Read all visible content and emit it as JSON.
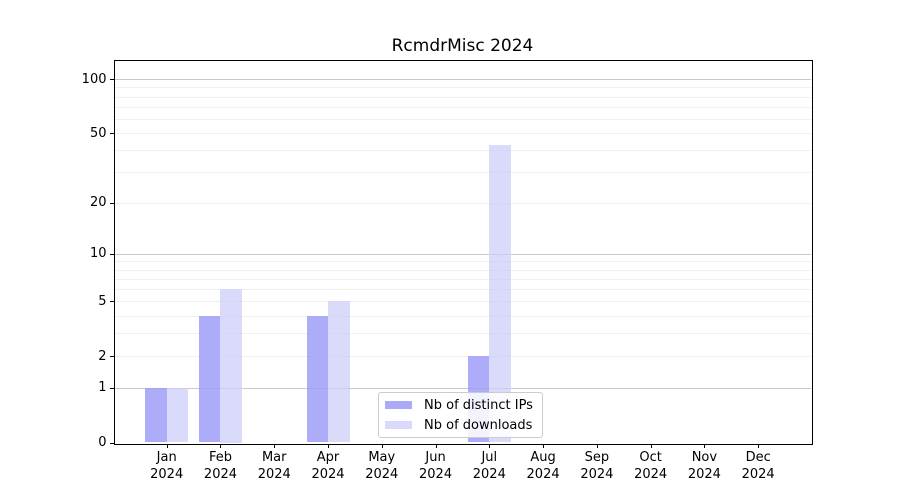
{
  "title": "RcmdrMisc 2024",
  "chart_data": {
    "type": "bar",
    "title": "RcmdrMisc 2024",
    "categories": [
      "Jan",
      "Feb",
      "Mar",
      "Apr",
      "May",
      "Jun",
      "Jul",
      "Aug",
      "Sep",
      "Oct",
      "Nov",
      "Dec"
    ],
    "year_label": "2024",
    "series": [
      {
        "name": "Nb of distinct IPs",
        "color": "rgba(158,158,248,0.85)",
        "color_hex": "#aaaaf8",
        "values": [
          1,
          4,
          0,
          4,
          0,
          0,
          2,
          0,
          0,
          0,
          0,
          0
        ]
      },
      {
        "name": "Nb of downloads",
        "color": "rgba(204,204,249,0.72)",
        "color_hex": "#d9d9fb",
        "values": [
          1,
          6,
          0,
          5,
          0,
          0,
          43,
          0,
          0,
          0,
          0,
          0
        ]
      }
    ],
    "yscale": "log1p",
    "ylim": [
      0,
      128
    ],
    "y_tick_values": [
      0,
      1,
      2,
      5,
      10,
      20,
      50,
      100
    ],
    "y_tick_labels": [
      "0",
      "1",
      "2",
      "5",
      "10",
      "20",
      "50",
      "100"
    ],
    "y_major_gridlines": [
      1,
      10,
      100
    ],
    "y_minor_gridlines": [
      2,
      3,
      4,
      5,
      6,
      7,
      8,
      9,
      20,
      30,
      40,
      50,
      60,
      70,
      80,
      90
    ],
    "grid": "horizontal",
    "legend_position": "bottom-center",
    "xlabel": "",
    "ylabel": ""
  }
}
